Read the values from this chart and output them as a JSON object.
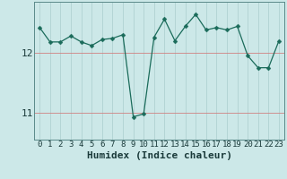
{
  "x": [
    0,
    1,
    2,
    3,
    4,
    5,
    6,
    7,
    8,
    9,
    10,
    11,
    12,
    13,
    14,
    15,
    16,
    17,
    18,
    19,
    20,
    21,
    22,
    23
  ],
  "y": [
    12.42,
    12.18,
    12.18,
    12.28,
    12.18,
    12.12,
    12.22,
    12.24,
    12.3,
    10.93,
    10.98,
    12.26,
    12.56,
    12.2,
    12.44,
    12.64,
    12.38,
    12.42,
    12.38,
    12.44,
    11.95,
    11.75,
    11.75,
    12.2
  ],
  "xlabel": "Humidex (Indice chaleur)",
  "ylim": [
    10.55,
    12.85
  ],
  "yticks": [
    11,
    12
  ],
  "xticks": [
    0,
    1,
    2,
    3,
    4,
    5,
    6,
    7,
    8,
    9,
    10,
    11,
    12,
    13,
    14,
    15,
    16,
    17,
    18,
    19,
    20,
    21,
    22,
    23
  ],
  "line_color": "#1a6b5a",
  "marker": "D",
  "marker_size": 2.5,
  "bg_color": "#cce8e8",
  "grid_color_x": "#aacece",
  "grid_color_y": "#d08080",
  "xlabel_fontsize": 8,
  "ytick_fontsize": 8,
  "xtick_fontsize": 6.5
}
